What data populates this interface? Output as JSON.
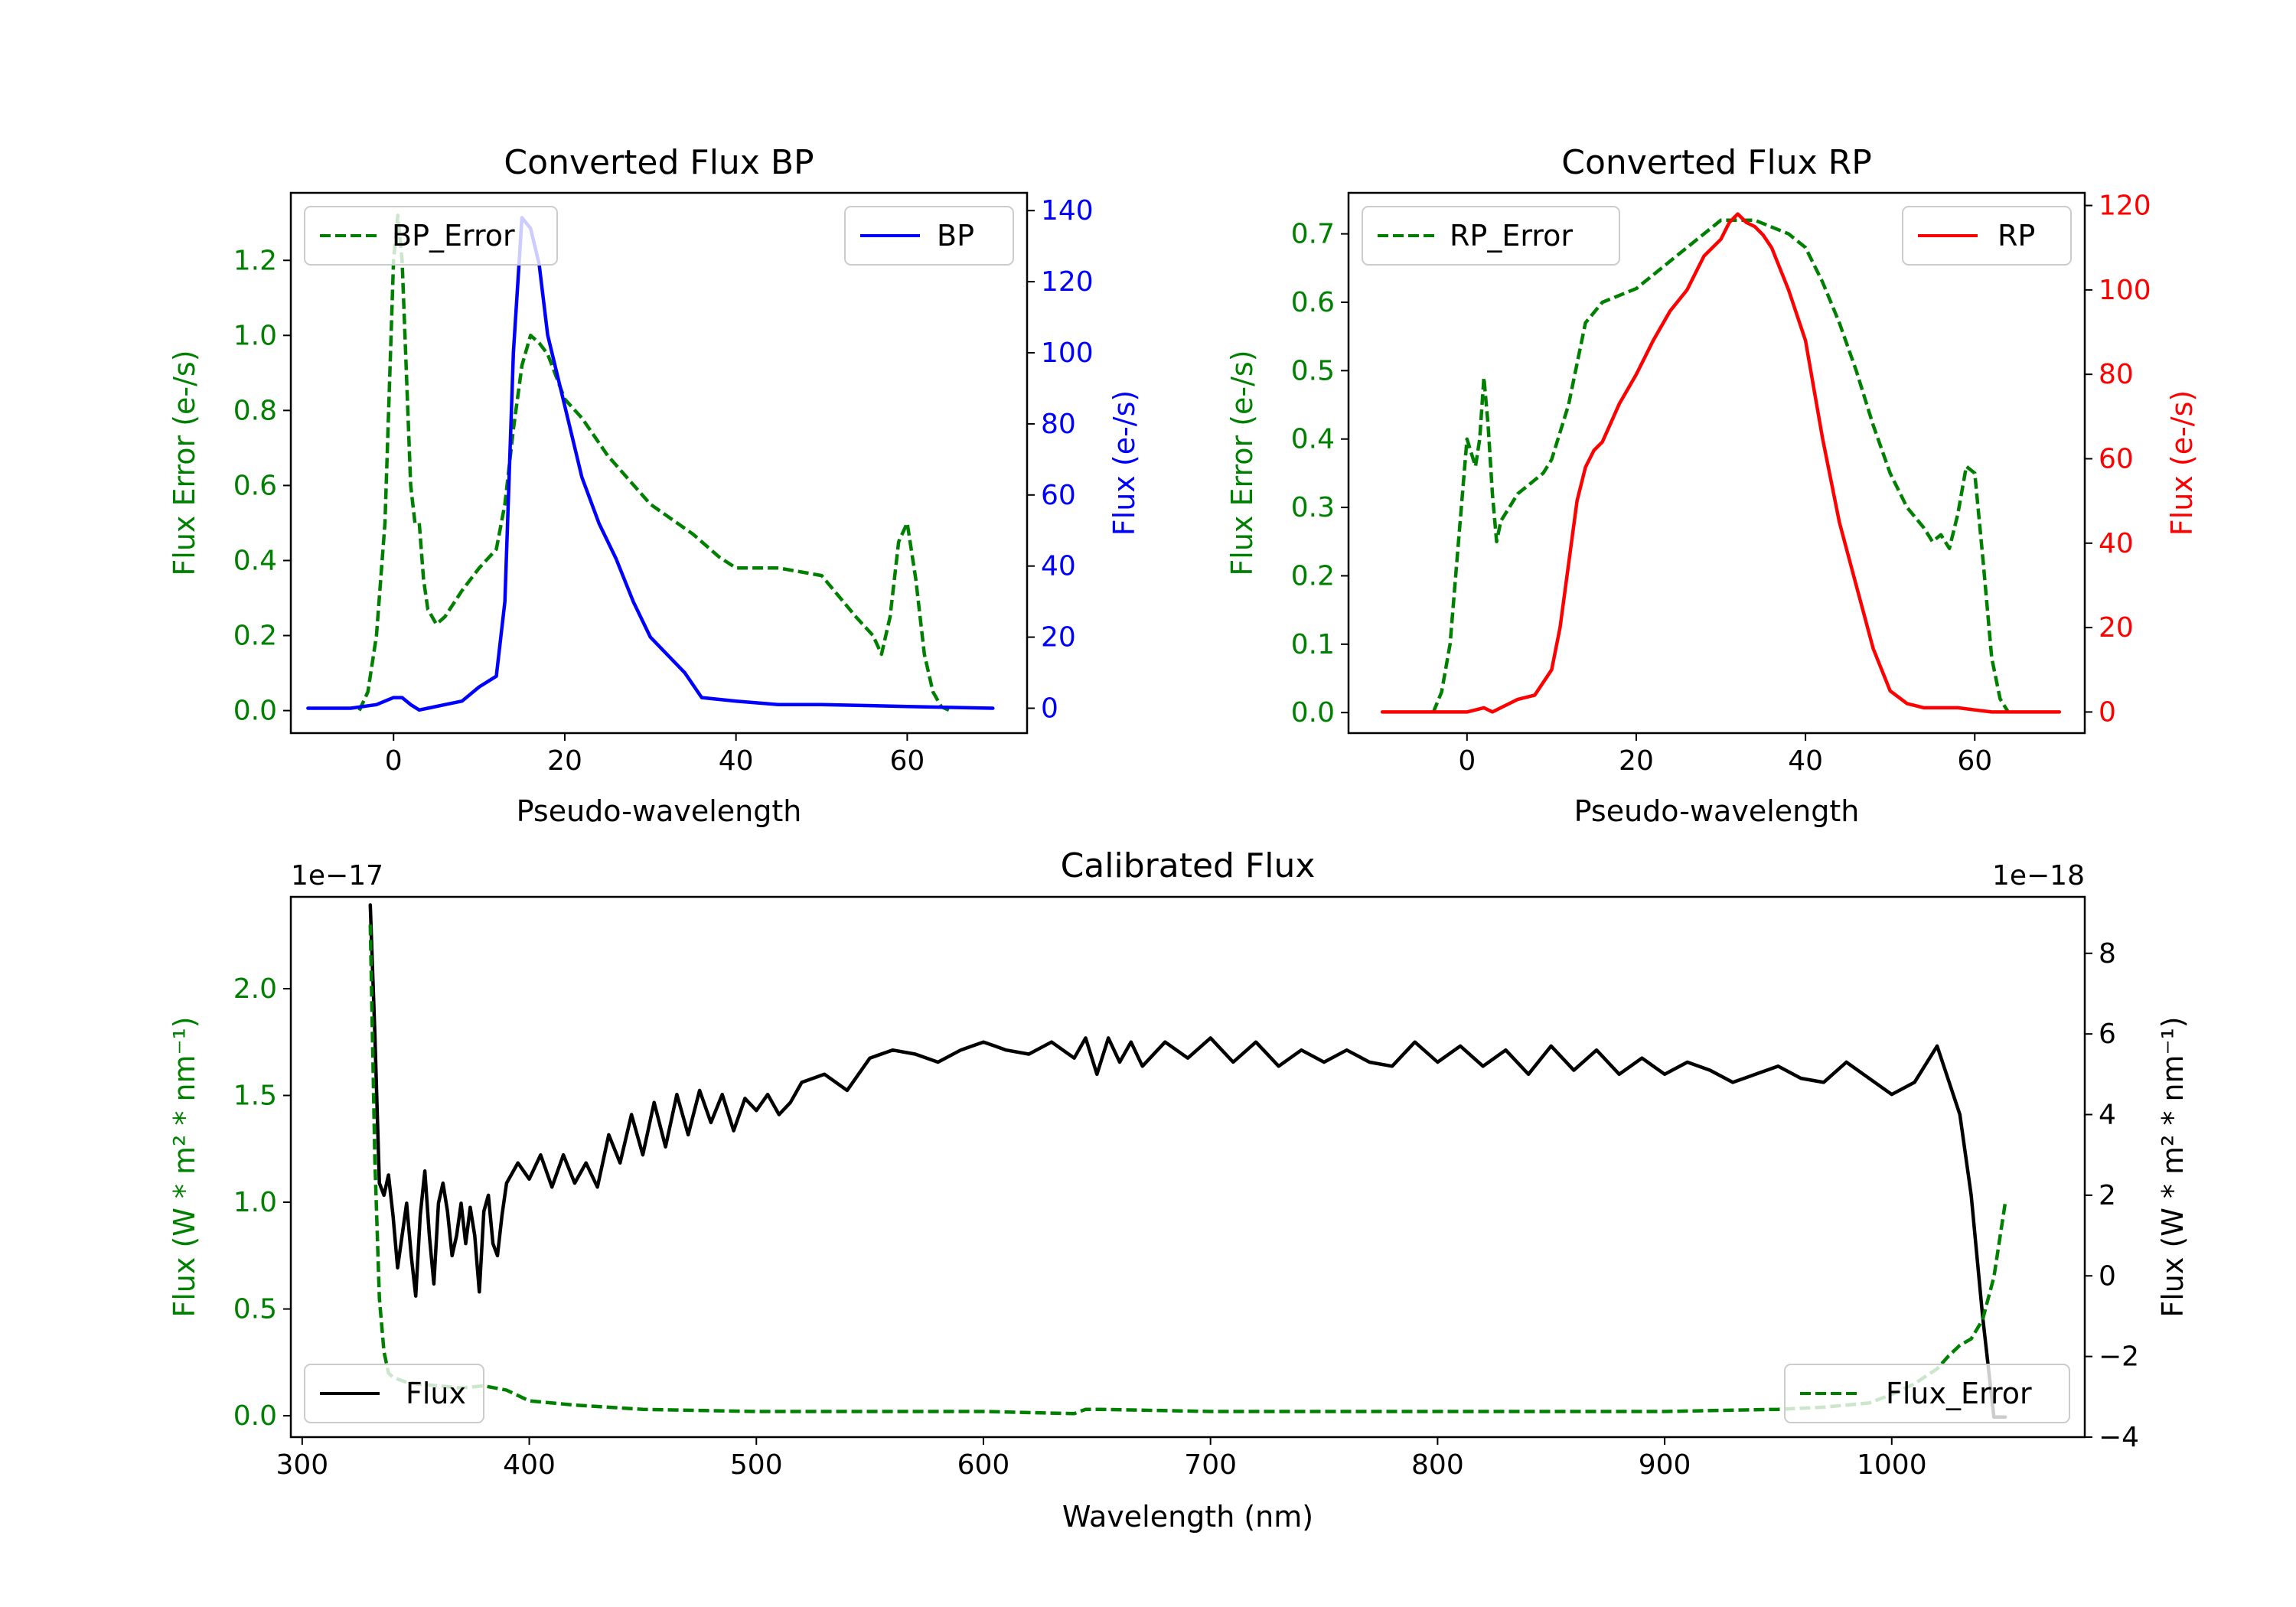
{
  "colors": {
    "error": "#008000",
    "bp": "#0000ff",
    "rp": "#ff0000",
    "flux": "#000000",
    "axis": "#000000"
  },
  "chart_data": [
    {
      "id": "bp",
      "type": "line",
      "title": "Converted Flux BP",
      "xlabel": "Pseudo-wavelength",
      "ylabel_left": "Flux Error (e-/s)",
      "ylabel_right": "Flux (e-/s)",
      "xlim": [
        -12,
        74
      ],
      "ylim_left": [
        -0.06,
        1.38
      ],
      "ylim_right": [
        -7,
        145
      ],
      "xticks": [
        0,
        20,
        40,
        60
      ],
      "yticks_left": [
        0.0,
        0.2,
        0.4,
        0.6,
        0.8,
        1.0,
        1.2
      ],
      "yticks_right": [
        0,
        20,
        40,
        60,
        80,
        100,
        120,
        140
      ],
      "legend_left": "BP_Error",
      "legend_right": "BP",
      "series": [
        {
          "name": "BP_Error",
          "axis": "left",
          "style": "dashed",
          "color": "#008000",
          "x": [
            -4,
            -3,
            -2,
            -1,
            0,
            0.5,
            1,
            1.5,
            2,
            2.5,
            3,
            3.5,
            4,
            5,
            6,
            8,
            10,
            12,
            13,
            14,
            15,
            16,
            17,
            18,
            20,
            22,
            25,
            30,
            35,
            38,
            40,
            45,
            50,
            54,
            56,
            57,
            58,
            59,
            60,
            61,
            62,
            63,
            64,
            65
          ],
          "y": [
            0.0,
            0.05,
            0.2,
            0.5,
            1.2,
            1.32,
            1.2,
            0.9,
            0.6,
            0.5,
            0.5,
            0.35,
            0.27,
            0.23,
            0.25,
            0.32,
            0.38,
            0.43,
            0.55,
            0.75,
            0.92,
            1.0,
            0.98,
            0.95,
            0.83,
            0.78,
            0.68,
            0.55,
            0.47,
            0.41,
            0.38,
            0.38,
            0.36,
            0.25,
            0.2,
            0.15,
            0.25,
            0.45,
            0.5,
            0.35,
            0.15,
            0.05,
            0.01,
            0.0
          ]
        },
        {
          "name": "BP",
          "axis": "right",
          "style": "solid",
          "color": "#0000ff",
          "x": [
            -10,
            -5,
            -2,
            0,
            1,
            2,
            3,
            4,
            6,
            8,
            10,
            12,
            13,
            14,
            15,
            16,
            17,
            18,
            20,
            22,
            24,
            26,
            28,
            30,
            32,
            34,
            36,
            40,
            45,
            50,
            60,
            70
          ],
          "y": [
            0,
            0,
            1,
            3,
            3,
            1,
            -0.5,
            0,
            1,
            2,
            6,
            9,
            30,
            100,
            138,
            135,
            125,
            105,
            85,
            65,
            52,
            42,
            30,
            20,
            15,
            10,
            3,
            2,
            1,
            1,
            0.5,
            0
          ]
        }
      ]
    },
    {
      "id": "rp",
      "type": "line",
      "title": "Converted Flux RP",
      "xlabel": "Pseudo-wavelength",
      "ylabel_left": "Flux Error (e-/s)",
      "ylabel_right": "Flux (e-/s)",
      "xlim": [
        -14,
        73
      ],
      "ylim_left": [
        -0.03,
        0.76
      ],
      "ylim_right": [
        -5,
        123
      ],
      "xticks": [
        0,
        20,
        40,
        60
      ],
      "yticks_left": [
        0.0,
        0.1,
        0.2,
        0.3,
        0.4,
        0.5,
        0.6,
        0.7
      ],
      "yticks_right": [
        0,
        20,
        40,
        60,
        80,
        100,
        120
      ],
      "legend_left": "RP_Error",
      "legend_right": "RP",
      "series": [
        {
          "name": "RP_Error",
          "axis": "left",
          "style": "dashed",
          "color": "#008000",
          "x": [
            -4,
            -3,
            -2,
            -1,
            0,
            0.5,
            1,
            1.5,
            2,
            2.5,
            3,
            3.5,
            4,
            5,
            6,
            7,
            8,
            9,
            10,
            12,
            14,
            16,
            20,
            25,
            28,
            30,
            32,
            34,
            36,
            38,
            40,
            42,
            44,
            46,
            48,
            50,
            52,
            54,
            55,
            56,
            57,
            58,
            59,
            60,
            61,
            62,
            63,
            64
          ],
          "y": [
            0.0,
            0.03,
            0.1,
            0.25,
            0.4,
            0.38,
            0.36,
            0.4,
            0.49,
            0.42,
            0.32,
            0.25,
            0.28,
            0.3,
            0.32,
            0.33,
            0.34,
            0.35,
            0.37,
            0.45,
            0.57,
            0.6,
            0.62,
            0.67,
            0.7,
            0.72,
            0.72,
            0.72,
            0.71,
            0.7,
            0.68,
            0.63,
            0.57,
            0.5,
            0.42,
            0.35,
            0.3,
            0.27,
            0.25,
            0.26,
            0.24,
            0.29,
            0.36,
            0.35,
            0.22,
            0.08,
            0.02,
            0.0
          ]
        },
        {
          "name": "RP",
          "axis": "right",
          "style": "solid",
          "color": "#ff0000",
          "x": [
            -10,
            0,
            2,
            3,
            4,
            5,
            6,
            8,
            10,
            11,
            12,
            13,
            14,
            15,
            16,
            18,
            20,
            22,
            24,
            26,
            28,
            30,
            31,
            32,
            33,
            34,
            35,
            36,
            38,
            40,
            42,
            44,
            46,
            48,
            50,
            52,
            54,
            56,
            58,
            60,
            62,
            64,
            70
          ],
          "y": [
            0,
            0,
            1,
            0,
            1,
            2,
            3,
            4,
            10,
            20,
            35,
            50,
            58,
            62,
            64,
            73,
            80,
            88,
            95,
            100,
            108,
            112,
            116,
            118,
            116,
            115,
            113,
            110,
            100,
            88,
            65,
            45,
            30,
            15,
            5,
            2,
            1,
            1,
            1,
            0.5,
            0,
            0,
            0
          ]
        }
      ]
    },
    {
      "id": "cal",
      "type": "line",
      "title": "Calibrated Flux",
      "xlabel": "Wavelength (nm)",
      "ylabel_left": "Flux (W * m² * nm⁻¹)",
      "ylabel_right": "Flux (W * m² * nm⁻¹)",
      "offset_left": "1e−17",
      "offset_right": "1e−18",
      "xlim": [
        295,
        1085
      ],
      "ylim_left": [
        -0.1,
        2.43
      ],
      "ylim_right": [
        -4.0,
        9.4
      ],
      "xticks": [
        300,
        400,
        500,
        600,
        700,
        800,
        900,
        1000
      ],
      "yticks_left": [
        0.0,
        0.5,
        1.0,
        1.5,
        2.0
      ],
      "yticks_right": [
        -4,
        -2,
        0,
        2,
        4,
        6,
        8
      ],
      "legend_left": "Flux",
      "legend_right": "Flux_Error",
      "series": [
        {
          "name": "Flux",
          "axis": "right",
          "style": "solid",
          "color": "#000000",
          "x": [
            330,
            332,
            334,
            336,
            338,
            340,
            342,
            344,
            346,
            348,
            350,
            352,
            354,
            356,
            358,
            360,
            362,
            364,
            366,
            368,
            370,
            372,
            374,
            376,
            378,
            380,
            382,
            384,
            386,
            388,
            390,
            395,
            400,
            405,
            410,
            415,
            420,
            425,
            430,
            435,
            440,
            445,
            450,
            455,
            460,
            465,
            470,
            475,
            480,
            485,
            490,
            495,
            500,
            505,
            510,
            515,
            520,
            530,
            540,
            550,
            560,
            570,
            580,
            590,
            600,
            605,
            610,
            620,
            630,
            640,
            645,
            650,
            655,
            660,
            665,
            670,
            680,
            690,
            700,
            710,
            720,
            730,
            740,
            750,
            760,
            770,
            780,
            790,
            800,
            810,
            820,
            830,
            840,
            850,
            860,
            870,
            880,
            890,
            900,
            910,
            920,
            930,
            940,
            950,
            960,
            970,
            980,
            990,
            1000,
            1010,
            1020,
            1030,
            1035,
            1040,
            1045,
            1050
          ],
          "y": [
            9.2,
            6,
            2.3,
            2.0,
            2.5,
            1.5,
            0.2,
            1.0,
            1.8,
            0.5,
            -0.5,
            1.5,
            2.6,
            1.0,
            -0.2,
            1.8,
            2.3,
            1.6,
            0.5,
            1.0,
            1.8,
            0.8,
            1.7,
            1.0,
            -0.4,
            1.6,
            2.0,
            0.8,
            0.5,
            1.5,
            2.3,
            2.8,
            2.4,
            3.0,
            2.2,
            3.0,
            2.3,
            2.8,
            2.2,
            3.5,
            2.8,
            4.0,
            3.0,
            4.3,
            3.2,
            4.5,
            3.5,
            4.6,
            3.8,
            4.5,
            3.6,
            4.4,
            4.1,
            4.5,
            4.0,
            4.3,
            4.8,
            5.0,
            4.6,
            5.4,
            5.6,
            5.5,
            5.3,
            5.6,
            5.8,
            5.7,
            5.6,
            5.5,
            5.8,
            5.4,
            5.9,
            5.0,
            5.9,
            5.3,
            5.8,
            5.2,
            5.8,
            5.4,
            5.9,
            5.3,
            5.8,
            5.2,
            5.6,
            5.3,
            5.6,
            5.3,
            5.2,
            5.8,
            5.3,
            5.7,
            5.2,
            5.6,
            5.0,
            5.7,
            5.1,
            5.6,
            5.0,
            5.4,
            5.0,
            5.3,
            5.1,
            4.8,
            5.0,
            5.2,
            4.9,
            4.8,
            5.3,
            4.9,
            4.5,
            4.8,
            5.7,
            4.0,
            2.0,
            -1.0,
            -3.5,
            -3.5
          ]
        },
        {
          "name": "Flux_Error",
          "axis": "left",
          "style": "dashed",
          "color": "#008000",
          "x": [
            330,
            332,
            334,
            336,
            338,
            340,
            345,
            350,
            360,
            370,
            380,
            390,
            400,
            420,
            450,
            500,
            550,
            600,
            640,
            645,
            650,
            700,
            800,
            900,
            950,
            970,
            990,
            1000,
            1010,
            1020,
            1025,
            1030,
            1035,
            1040,
            1045,
            1050
          ],
          "y": [
            2.3,
            1.2,
            0.55,
            0.3,
            0.2,
            0.18,
            0.16,
            0.15,
            0.14,
            0.13,
            0.14,
            0.12,
            0.07,
            0.05,
            0.03,
            0.02,
            0.02,
            0.02,
            0.01,
            0.03,
            0.03,
            0.02,
            0.02,
            0.02,
            0.03,
            0.04,
            0.06,
            0.1,
            0.15,
            0.22,
            0.28,
            0.33,
            0.36,
            0.45,
            0.65,
            1.0
          ]
        }
      ]
    }
  ]
}
